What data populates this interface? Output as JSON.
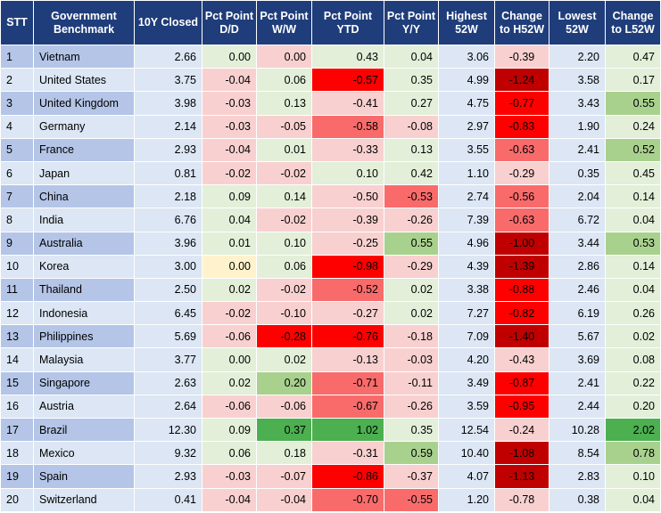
{
  "colors": {
    "header_bg": "#1f3d7a",
    "row_odd": "#b4c5e7",
    "row_even": "#dce6f4",
    "neutral_light": "#dce6f4",
    "green_pale": "#e3efd9",
    "green_light": "#a9d18e",
    "green_strong": "#4caf50",
    "yellow_pale": "#fff2cc",
    "red_pale": "#f8d0d0",
    "red_light": "#f4a5a5",
    "red_mid": "#f96b6b",
    "red_strong": "#ff0000",
    "red_dark": "#c00000"
  },
  "table": {
    "headers": [
      "STT",
      "Government Benchmark",
      "10Y Closed",
      "Pct Point D/D",
      "Pct Point W/W",
      "Pct Point YTD",
      "Pct Point Y/Y",
      "Highest 52W",
      "Change to H52W",
      "Lowest 52W",
      "Change to L52W"
    ],
    "rows": [
      [
        "1",
        "Vietnam",
        "2.66",
        "0.00",
        "0.00",
        "0.43",
        "0.04",
        "3.06",
        "-0.39",
        "2.20",
        "0.47"
      ],
      [
        "2",
        "United States",
        "3.75",
        "-0.04",
        "0.06",
        "-0.57",
        "0.35",
        "4.99",
        "-1.24",
        "3.58",
        "0.17"
      ],
      [
        "3",
        "United Kingdom",
        "3.98",
        "-0.03",
        "0.13",
        "-0.41",
        "0.27",
        "4.75",
        "-0.77",
        "3.43",
        "0.55"
      ],
      [
        "4",
        "Germany",
        "2.14",
        "-0.03",
        "-0.05",
        "-0.58",
        "-0.08",
        "2.97",
        "-0.83",
        "1.90",
        "0.24"
      ],
      [
        "5",
        "France",
        "2.93",
        "-0.04",
        "0.01",
        "-0.33",
        "0.13",
        "3.55",
        "-0.63",
        "2.41",
        "0.52"
      ],
      [
        "6",
        "Japan",
        "0.81",
        "-0.02",
        "-0.02",
        "0.10",
        "0.42",
        "1.10",
        "-0.29",
        "0.35",
        "0.45"
      ],
      [
        "7",
        "China",
        "2.18",
        "0.09",
        "0.14",
        "-0.50",
        "-0.53",
        "2.74",
        "-0.56",
        "2.04",
        "0.14"
      ],
      [
        "8",
        "India",
        "6.76",
        "0.04",
        "-0.02",
        "-0.39",
        "-0.26",
        "7.39",
        "-0.63",
        "6.72",
        "0.04"
      ],
      [
        "9",
        "Australia",
        "3.96",
        "0.01",
        "0.10",
        "-0.25",
        "0.55",
        "4.96",
        "-1.00",
        "3.44",
        "0.53"
      ],
      [
        "10",
        "Korea",
        "3.00",
        "0.00",
        "0.06",
        "-0.98",
        "-0.29",
        "4.39",
        "-1.39",
        "2.86",
        "0.14"
      ],
      [
        "11",
        "Thailand",
        "2.50",
        "0.02",
        "-0.02",
        "-0.52",
        "0.02",
        "3.38",
        "-0.88",
        "2.46",
        "0.04"
      ],
      [
        "12",
        "Indonesia",
        "6.45",
        "-0.02",
        "-0.10",
        "-0.27",
        "0.02",
        "7.27",
        "-0.82",
        "6.19",
        "0.26"
      ],
      [
        "13",
        "Philippines",
        "5.69",
        "-0.06",
        "-0.28",
        "-0.76",
        "-0.18",
        "7.09",
        "-1.40",
        "5.67",
        "0.02"
      ],
      [
        "14",
        "Malaysia",
        "3.77",
        "0.00",
        "0.02",
        "-0.13",
        "-0.03",
        "4.20",
        "-0.43",
        "3.69",
        "0.08"
      ],
      [
        "15",
        "Singapore",
        "2.63",
        "0.02",
        "0.20",
        "-0.71",
        "-0.11",
        "3.49",
        "-0.87",
        "2.41",
        "0.22"
      ],
      [
        "16",
        "Austria",
        "2.64",
        "-0.06",
        "-0.06",
        "-0.67",
        "-0.26",
        "3.59",
        "-0.95",
        "2.44",
        "0.20"
      ],
      [
        "17",
        "Brazil",
        "12.30",
        "0.09",
        "0.37",
        "1.02",
        "0.35",
        "12.54",
        "-0.24",
        "10.28",
        "2.02"
      ],
      [
        "18",
        "Mexico",
        "9.32",
        "0.06",
        "0.18",
        "-0.31",
        "0.59",
        "10.40",
        "-1.08",
        "8.54",
        "0.78"
      ],
      [
        "19",
        "Spain",
        "2.93",
        "-0.03",
        "-0.07",
        "-0.86",
        "-0.37",
        "4.07",
        "-1.13",
        "2.83",
        "0.10"
      ],
      [
        "20",
        "Switzerland",
        "0.41",
        "-0.04",
        "-0.04",
        "-0.70",
        "-0.55",
        "1.20",
        "-0.78",
        "0.38",
        "0.04"
      ]
    ],
    "cell_colors": [
      [
        "",
        "",
        "#dce6f4",
        "#e3efd9",
        "#f8d0d0",
        "#e3efd9",
        "#e3efd9",
        "#dce6f4",
        "#f8d0d0",
        "#dce6f4",
        "#e3efd9"
      ],
      [
        "",
        "",
        "#dce6f4",
        "#f8d0d0",
        "#e3efd9",
        "#ff0000",
        "#e3efd9",
        "#dce6f4",
        "#c00000",
        "#dce6f4",
        "#e3efd9"
      ],
      [
        "",
        "",
        "#dce6f4",
        "#f8d0d0",
        "#e3efd9",
        "#f8d0d0",
        "#e3efd9",
        "#dce6f4",
        "#ff0000",
        "#dce6f4",
        "#a9d18e"
      ],
      [
        "",
        "",
        "#dce6f4",
        "#f8d0d0",
        "#f8d0d0",
        "#f96b6b",
        "#f8d0d0",
        "#dce6f4",
        "#ff0000",
        "#dce6f4",
        "#e3efd9"
      ],
      [
        "",
        "",
        "#dce6f4",
        "#f8d0d0",
        "#e3efd9",
        "#f8d0d0",
        "#e3efd9",
        "#dce6f4",
        "#f96b6b",
        "#dce6f4",
        "#a9d18e"
      ],
      [
        "",
        "",
        "#dce6f4",
        "#f8d0d0",
        "#f8d0d0",
        "#e3efd9",
        "#e3efd9",
        "#dce6f4",
        "#f8d0d0",
        "#dce6f4",
        "#e3efd9"
      ],
      [
        "",
        "",
        "#dce6f4",
        "#e3efd9",
        "#e3efd9",
        "#f8d0d0",
        "#f96b6b",
        "#dce6f4",
        "#f96b6b",
        "#dce6f4",
        "#e3efd9"
      ],
      [
        "",
        "",
        "#dce6f4",
        "#e3efd9",
        "#f8d0d0",
        "#f8d0d0",
        "#f8d0d0",
        "#dce6f4",
        "#f96b6b",
        "#dce6f4",
        "#e3efd9"
      ],
      [
        "",
        "",
        "#dce6f4",
        "#e3efd9",
        "#e3efd9",
        "#f8d0d0",
        "#a9d18e",
        "#dce6f4",
        "#c00000",
        "#dce6f4",
        "#a9d18e"
      ],
      [
        "",
        "",
        "#dce6f4",
        "#fff2cc",
        "#e3efd9",
        "#ff0000",
        "#f8d0d0",
        "#dce6f4",
        "#c00000",
        "#dce6f4",
        "#e3efd9"
      ],
      [
        "",
        "",
        "#dce6f4",
        "#e3efd9",
        "#f8d0d0",
        "#f96b6b",
        "#e3efd9",
        "#dce6f4",
        "#ff0000",
        "#dce6f4",
        "#e3efd9"
      ],
      [
        "",
        "",
        "#dce6f4",
        "#f8d0d0",
        "#f8d0d0",
        "#f8d0d0",
        "#e3efd9",
        "#dce6f4",
        "#ff0000",
        "#dce6f4",
        "#e3efd9"
      ],
      [
        "",
        "",
        "#dce6f4",
        "#f8d0d0",
        "#ff0000",
        "#ff0000",
        "#f8d0d0",
        "#dce6f4",
        "#c00000",
        "#dce6f4",
        "#e3efd9"
      ],
      [
        "",
        "",
        "#dce6f4",
        "#e3efd9",
        "#e3efd9",
        "#f8d0d0",
        "#f8d0d0",
        "#dce6f4",
        "#f8d0d0",
        "#dce6f4",
        "#e3efd9"
      ],
      [
        "",
        "",
        "#dce6f4",
        "#e3efd9",
        "#a9d18e",
        "#f96b6b",
        "#f8d0d0",
        "#dce6f4",
        "#ff0000",
        "#dce6f4",
        "#e3efd9"
      ],
      [
        "",
        "",
        "#dce6f4",
        "#f8d0d0",
        "#f8d0d0",
        "#f96b6b",
        "#f8d0d0",
        "#dce6f4",
        "#ff0000",
        "#dce6f4",
        "#e3efd9"
      ],
      [
        "",
        "",
        "#dce6f4",
        "#e3efd9",
        "#4caf50",
        "#4caf50",
        "#e3efd9",
        "#dce6f4",
        "#f8d0d0",
        "#dce6f4",
        "#4caf50"
      ],
      [
        "",
        "",
        "#dce6f4",
        "#e3efd9",
        "#e3efd9",
        "#f8d0d0",
        "#a9d18e",
        "#dce6f4",
        "#c00000",
        "#dce6f4",
        "#a9d18e"
      ],
      [
        "",
        "",
        "#dce6f4",
        "#f8d0d0",
        "#f8d0d0",
        "#ff0000",
        "#f8d0d0",
        "#dce6f4",
        "#c00000",
        "#dce6f4",
        "#e3efd9"
      ],
      [
        "",
        "",
        "#dce6f4",
        "#f8d0d0",
        "#f8d0d0",
        "#f96b6b",
        "#f96b6b",
        "#dce6f4",
        "#f8d0d0",
        "#dce6f4",
        "#e3efd9"
      ]
    ]
  }
}
